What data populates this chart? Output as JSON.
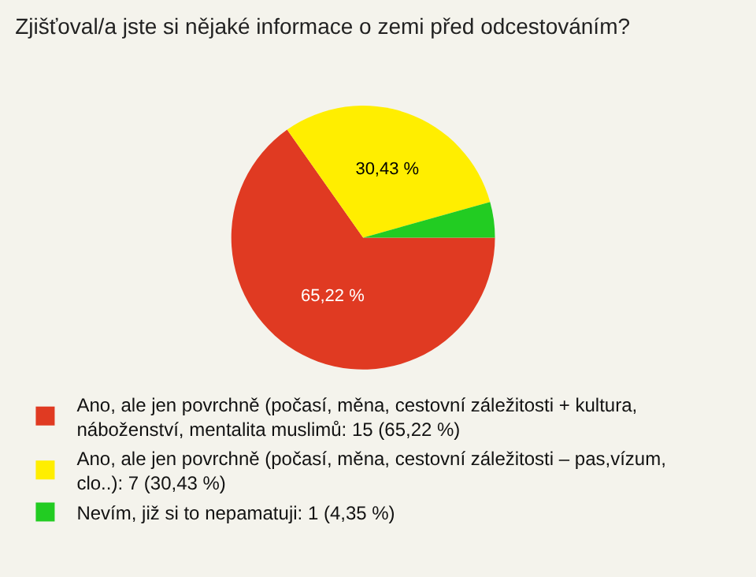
{
  "chart_data": {
    "type": "pie",
    "title": "Zjišťoval/a jste si nějaké informace o zemi před odcestováním?",
    "categories": [
      "Ano, ale jen povrchně (počasí, měna, cestovní záležitosti + kultura,\nnáboženství, mentalita muslimů: 15 (65,22 %)",
      "Ano, ale jen povrchně (počasí, měna, cestovní záležitosti – pas,vízum,\nclo..): 7 (30,43 %)",
      "Nevím, již si to nepamatuji: 1 (4,35 %)"
    ],
    "values": [
      65.22,
      30.43,
      4.35
    ],
    "colors": [
      "#e03a22",
      "#ffee00",
      "#22cc22"
    ],
    "value_labels": [
      "65,22 %",
      "30,43 %",
      null
    ],
    "legend": "bottom"
  }
}
